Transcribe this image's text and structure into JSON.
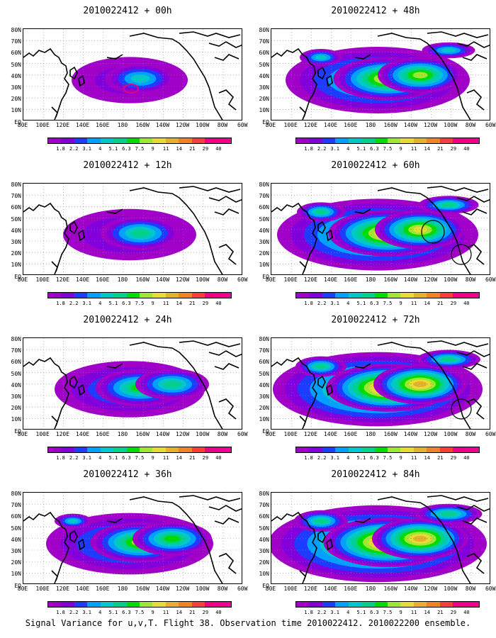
{
  "panels": [
    {
      "title": "2010022412 + 00h",
      "intensity": 0.35
    },
    {
      "title": "2010022412 + 48h",
      "intensity": 0.75
    },
    {
      "title": "2010022412 + 12h",
      "intensity": 0.45
    },
    {
      "title": "2010022412 + 60h",
      "intensity": 0.85
    },
    {
      "title": "2010022412 + 24h",
      "intensity": 0.55
    },
    {
      "title": "2010022412 + 72h",
      "intensity": 0.9
    },
    {
      "title": "2010022412 + 36h",
      "intensity": 0.65
    },
    {
      "title": "2010022412 + 84h",
      "intensity": 0.95
    }
  ],
  "lat_labels": [
    "80N",
    "70N",
    "60N",
    "50N",
    "40N",
    "30N",
    "20N",
    "10N",
    "EQ"
  ],
  "lon_labels": [
    "80E",
    "100E",
    "120E",
    "140E",
    "160E",
    "180",
    "160W",
    "140W",
    "120W",
    "100W",
    "80W",
    "60W"
  ],
  "colorbar": {
    "labels": [
      "1.8",
      "2.2",
      "3.1",
      "4",
      "5.1",
      "6.3",
      "7.5",
      "9",
      "11",
      "14",
      "21",
      "29",
      "40"
    ],
    "colors": [
      "#a000c8",
      "#8200dc",
      "#1e3cff",
      "#00a0ff",
      "#00c8c8",
      "#00d28c",
      "#00dc00",
      "#a0e632",
      "#e6dc32",
      "#e6af2d",
      "#f08228",
      "#fa3c3c",
      "#f00082",
      "#f0008c"
    ]
  },
  "caption": "Signal Variance for u,v,T. Flight 38. Observation time 2010022412. 2010022200 ensemble."
}
